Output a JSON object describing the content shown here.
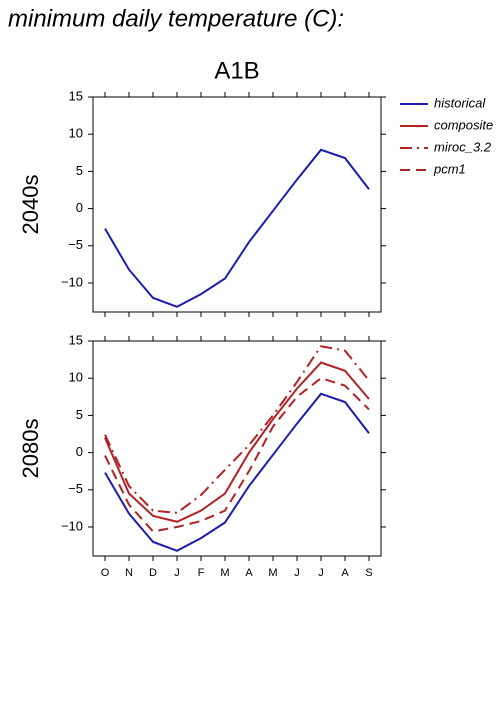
{
  "title": "minimum daily temperature (C):",
  "chart_data": [
    {
      "type": "line",
      "title": "A1B",
      "ylabel": "2040s",
      "categories": [
        null,
        null,
        null,
        null,
        null,
        null,
        null,
        null,
        null,
        null,
        null,
        null
      ],
      "ylim": [
        -13.9,
        15
      ],
      "yticks": [
        {
          "value": -10,
          "label": "−10"
        },
        {
          "value": -5,
          "label": "−5"
        },
        0,
        5,
        10,
        15
      ],
      "series": [
        {
          "color": "#1c1cb4",
          "dash": "solid",
          "values": [
            -2.7,
            -8.2,
            -12,
            -13.2,
            -11.5,
            -9.4,
            -4.5,
            -0.3,
            3.9,
            7.9,
            6.8,
            2.6
          ]
        }
      ]
    },
    {
      "type": "line",
      "ylabel": "2080s",
      "categories": [
        "O",
        "N",
        "D",
        "J",
        "F",
        "M",
        "A",
        "M",
        "J",
        "J",
        "A",
        "S"
      ],
      "ylim": [
        -13.9,
        15
      ],
      "yticks": [
        {
          "value": -10,
          "label": "−10"
        },
        {
          "value": -5,
          "label": "−5"
        },
        0,
        5,
        10,
        15
      ],
      "legend": "outside-right-top",
      "series": [
        {
          "name": "historical",
          "color": "#1c1cb4",
          "dash": "solid",
          "values": [
            -2.7,
            -8.2,
            -12,
            -13.2,
            -11.5,
            -9.4,
            -4.5,
            -0.3,
            3.9,
            7.9,
            6.8,
            2.6
          ]
        },
        {
          "name": "composite",
          "color": "#b22222",
          "dash": "solid",
          "values": [
            2,
            -5.5,
            -8.5,
            -9.3,
            -7.8,
            -5.5,
            0,
            4.5,
            8.6,
            12.1,
            11,
            7.2
          ]
        },
        {
          "name": "miroc_3.2",
          "color": "#b22222",
          "dash": "dashdot",
          "values": [
            2.4,
            -4.5,
            -7.8,
            -8.1,
            -5.7,
            -2.3,
            1,
            5,
            9.5,
            14.3,
            13.7,
            9.7
          ]
        },
        {
          "name": "pcm1",
          "color": "#b22222",
          "dash": "dashed",
          "values": [
            -0.4,
            -7,
            -10.6,
            -10,
            -9.2,
            -7.8,
            -2.5,
            3.5,
            7.5,
            10,
            9,
            5.8
          ]
        }
      ]
    }
  ]
}
